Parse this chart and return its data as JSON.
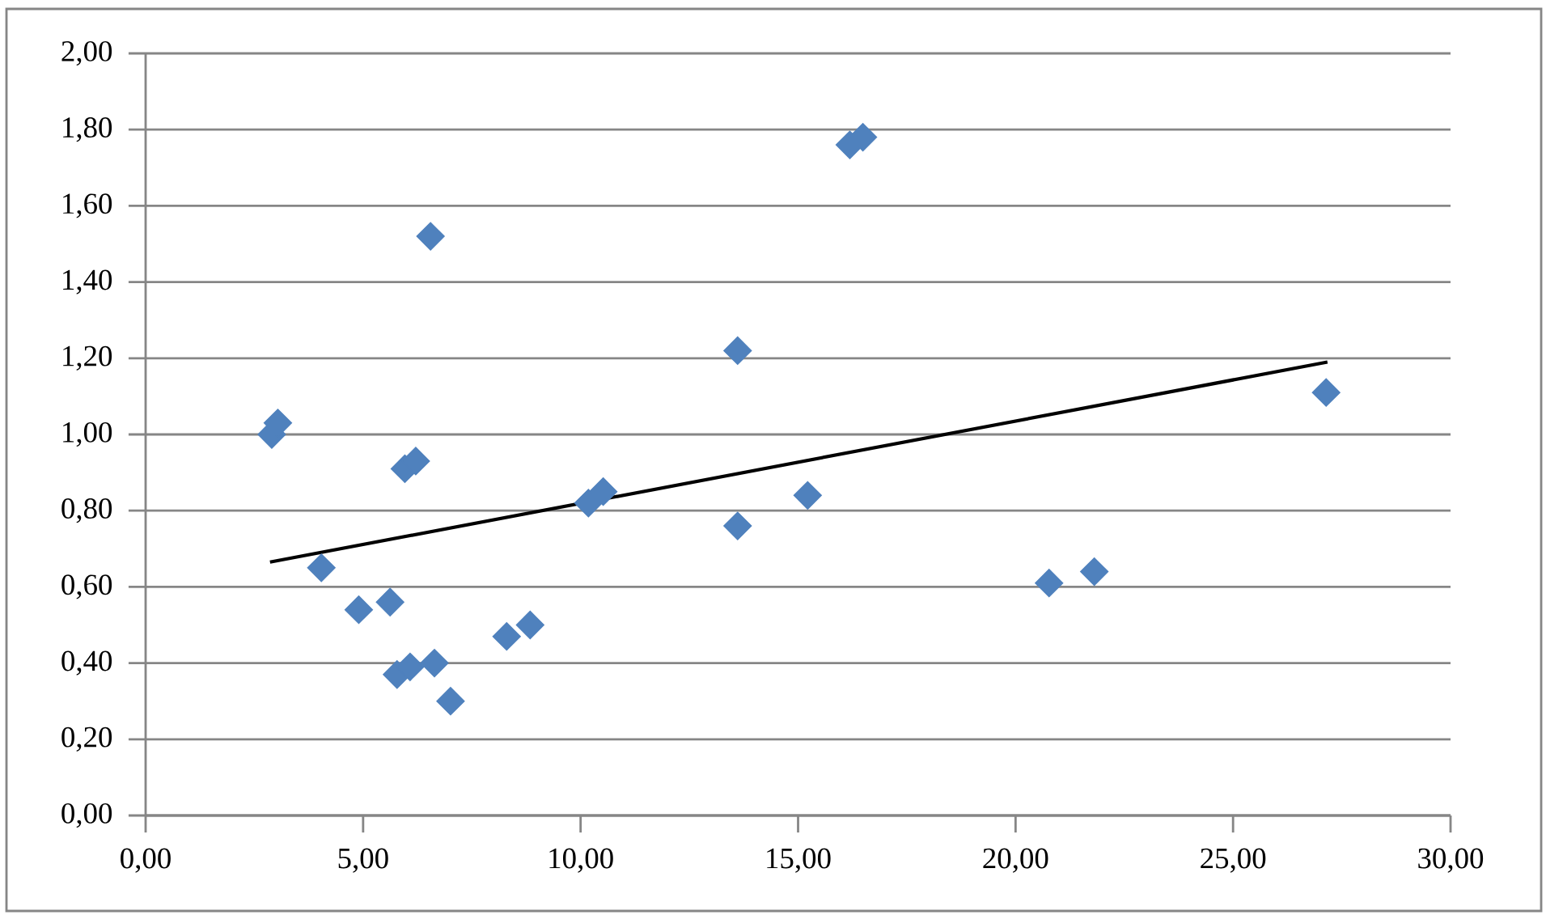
{
  "chart_data": {
    "type": "scatter",
    "grid": "y",
    "xlim": [
      0,
      30
    ],
    "ylim": [
      0,
      2
    ],
    "xticks": [
      {
        "value": 0,
        "label": "0,00"
      },
      {
        "value": 5,
        "label": "5,00"
      },
      {
        "value": 10,
        "label": "10,00"
      },
      {
        "value": 15,
        "label": "15,00"
      },
      {
        "value": 20,
        "label": "20,00"
      },
      {
        "value": 25,
        "label": "25,00"
      },
      {
        "value": 30,
        "label": "30,00"
      }
    ],
    "yticks": [
      {
        "value": 0,
        "label": "0,00"
      },
      {
        "value": 0.2,
        "label": "0,20"
      },
      {
        "value": 0.4,
        "label": "0,40"
      },
      {
        "value": 0.6,
        "label": "0,60"
      },
      {
        "value": 0.8,
        "label": "0,80"
      },
      {
        "value": 1.0,
        "label": "1,00"
      },
      {
        "value": 1.2,
        "label": "1,20"
      },
      {
        "value": 1.4,
        "label": "1,40"
      },
      {
        "value": 1.6,
        "label": "1,60"
      },
      {
        "value": 1.8,
        "label": "1,80"
      },
      {
        "value": 2.0,
        "label": "2,00"
      }
    ],
    "series": [
      {
        "marker": "diamond",
        "color": "#4f81bd",
        "x": [
          2.9,
          3.04,
          4.04,
          4.9,
          5.62,
          5.78,
          6.08,
          5.96,
          6.21,
          6.55,
          6.64,
          7.01,
          8.3,
          8.84,
          10.18,
          10.52,
          13.61,
          13.61,
          15.22,
          16.19,
          16.49,
          20.77,
          21.81,
          27.14
        ],
        "values": [
          1.0,
          1.03,
          0.65,
          0.54,
          0.56,
          0.37,
          0.39,
          0.91,
          0.93,
          1.52,
          0.4,
          0.3,
          0.47,
          0.5,
          0.82,
          0.85,
          1.22,
          0.76,
          0.84,
          1.76,
          1.78,
          0.61,
          0.64,
          1.11
        ]
      },
      {
        "type": "line",
        "marker": "none",
        "line_style": "solid",
        "color": "#000000",
        "x": [
          2.86,
          27.17
        ],
        "values": [
          0.665,
          1.19
        ]
      }
    ]
  }
}
